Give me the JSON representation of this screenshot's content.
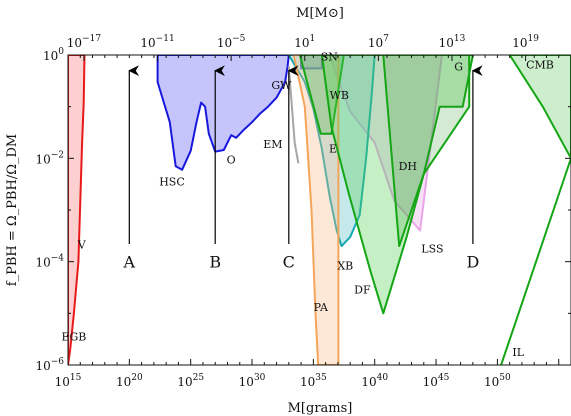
{
  "chart_data": {
    "type": "area",
    "xscale": "log",
    "yscale": "log",
    "xlim": [
      1000000000000000.0,
      1e+56
    ],
    "ylim": [
      1e-06,
      1
    ],
    "xlabel": "M[grams]",
    "ylabel": "f_PBH = Ω_PBH/Ω_DM",
    "top_axis_label": "M[M⊙]",
    "x_ticks": [
      {
        "base": "10",
        "exp": "15",
        "value": 1000000000000000.0
      },
      {
        "base": "10",
        "exp": "20",
        "value": 1e+20
      },
      {
        "base": "10",
        "exp": "25",
        "value": 1e+25
      },
      {
        "base": "10",
        "exp": "30",
        "value": 1e+30
      },
      {
        "base": "10",
        "exp": "35",
        "value": 1e+35
      },
      {
        "base": "10",
        "exp": "40",
        "value": 1e+40
      },
      {
        "base": "10",
        "exp": "45",
        "value": 1e+45
      },
      {
        "base": "10",
        "exp": "50",
        "value": 1e+50
      }
    ],
    "top_ticks": [
      {
        "base": "10",
        "exp": "−17",
        "value": 1e-17
      },
      {
        "base": "10",
        "exp": "−11",
        "value": 1e-11
      },
      {
        "base": "10",
        "exp": "−5",
        "value": 1e-05
      },
      {
        "base": "10",
        "exp": "1",
        "value": 10
      },
      {
        "base": "10",
        "exp": "7",
        "value": 10000000.0
      },
      {
        "base": "10",
        "exp": "13",
        "value": 10000000000000.0
      },
      {
        "base": "10",
        "exp": "19",
        "value": 1e+19
      }
    ],
    "y_ticks": [
      {
        "label": "10",
        "exp": "0",
        "value": 1
      },
      {
        "label": "10",
        "exp": "−2",
        "value": 0.01
      },
      {
        "label": "10",
        "exp": "−4",
        "value": 0.0001
      },
      {
        "label": "10",
        "exp": "−6",
        "value": 1e-06
      }
    ],
    "constraints": [
      {
        "name": "EGB",
        "color": "#e8191a",
        "fill": "rgba(250,120,120,0.35)",
        "points": [
          [
            1000000000000000.0,
            1e-06
          ],
          [
            1000000000000000.0,
            1
          ],
          [
            2.2e+16,
            1
          ],
          [
            1.9e+16,
            0.12
          ],
          [
            1.4e+16,
            0.02
          ],
          [
            7000000000000000.0,
            0.0001
          ],
          [
            3000000000000000.0,
            1e-05
          ],
          [
            1500000000000000.0,
            2e-06
          ]
        ]
      },
      {
        "name": "HSC",
        "color": "#1818dd",
        "fill": "rgba(110,110,245,0.4)",
        "points": [
          [
            2e+22,
            1
          ],
          [
            2e+22,
            0.3
          ],
          [
            2e+23,
            0.05
          ],
          [
            6e+23,
            0.007
          ],
          [
            2e+24,
            0.006
          ],
          [
            1e+25,
            0.014
          ],
          [
            3e+25,
            0.05
          ],
          [
            7e+25,
            0.12
          ],
          [
            1.5e+26,
            0.1
          ],
          [
            3e+26,
            0.03
          ],
          [
            1e+27,
            0.0135
          ],
          [
            5e+27,
            0.0145
          ],
          [
            2e+28,
            0.028
          ],
          [
            5e+28,
            0.025
          ],
          [
            2e+29,
            0.035
          ],
          [
            1e+30,
            0.05
          ],
          [
            5e+30,
            0.075
          ],
          [
            2e+31,
            0.1
          ],
          [
            1e+32,
            0.15
          ],
          [
            5e+32,
            0.3
          ],
          [
            8e+32,
            0.6
          ],
          [
            1e+33,
            1
          ]
        ]
      },
      {
        "name": "SN",
        "color": "#1818c8",
        "fill": "rgba(110,110,245,0.4)",
        "points": [
          [
            1e+34,
            1
          ],
          [
            1e+34,
            0.55
          ],
          [
            5e+35,
            0.55
          ],
          [
            5e+35,
            1
          ]
        ]
      },
      {
        "name": "WB",
        "color": "#e8a5e8",
        "fill": "rgba(230,170,230,0.35)",
        "points": [
          [
            2e+36,
            1
          ],
          [
            3e+37,
            0.17
          ],
          [
            1e+38,
            0.08
          ],
          [
            1e+40,
            0.02
          ],
          [
            4e+41,
            0.0015
          ],
          [
            5e+43,
            0.0004
          ],
          [
            3e+45,
            1
          ]
        ]
      },
      {
        "name": "XB",
        "color": "#13a7b0",
        "fill": "rgba(110,200,205,0.4)",
        "points": [
          [
            1e+33,
            1
          ],
          [
            2e+34,
            0.3
          ],
          [
            1e+35,
            0.09
          ],
          [
            5e+35,
            0.015
          ],
          [
            2e+36,
            0.002
          ],
          [
            8e+36,
            0.0004
          ],
          [
            2e+37,
            0.0002
          ],
          [
            1e+38,
            0.0003
          ],
          [
            6e+38,
            0.0008
          ],
          [
            2e+39,
            0.01
          ],
          [
            6e+39,
            0.2
          ],
          [
            1e+40,
            1
          ]
        ]
      },
      {
        "name": "PA",
        "color": "#f5a55a",
        "fill": "rgba(250,190,140,0.35)",
        "points": [
          [
            2.5e+33,
            1
          ],
          [
            2e+34,
            0.1
          ],
          [
            7e+34,
            0.001
          ],
          [
            1.5e+35,
            1e-05
          ],
          [
            2.5e+35,
            1e-06
          ],
          [
            1.1e+37,
            1e-06
          ],
          [
            1.1e+37,
            1
          ]
        ]
      },
      {
        "name": "E",
        "color": "#14a614",
        "fill": "rgba(90,190,90,0.35)",
        "points": [
          [
            8e+33,
            1
          ],
          [
            4e+35,
            0.03
          ],
          [
            3e+36,
            0.03
          ],
          [
            3e+37,
            1
          ]
        ]
      },
      {
        "name": "DF",
        "color": "#14a614",
        "fill": "rgba(90,210,90,0.35)",
        "points": [
          [
            5e+35,
            1
          ],
          [
            3e+36,
            0.04
          ],
          [
            8e+37,
            0.002
          ],
          [
            5e+39,
            6e-05
          ],
          [
            5e+40,
            1e-05
          ],
          [
            4e+42,
            0.0003
          ],
          [
            1e+44,
            0.005
          ],
          [
            2e+45,
            0.1
          ],
          [
            1.5e+47,
            0.1
          ],
          [
            1e+48,
            1
          ]
        ]
      },
      {
        "name": "G",
        "color": "#14a614",
        "fill": "rgba(40,150,40,0.2)",
        "points": [
          [
            5e+40,
            1
          ],
          [
            5e+47,
            1
          ],
          [
            5e+47,
            0.1
          ],
          [
            1e+44,
            0.005
          ],
          [
            1e+42,
            0.0002
          ]
        ]
      },
      {
        "name": "CMB",
        "color": "#14a614",
        "fill": "rgba(90,200,90,0.3)",
        "points": [
          [
            1e+51,
            1
          ],
          [
            5e+53,
            0.1
          ],
          [
            1e+56,
            0.01
          ],
          [
            1e+56,
            1
          ]
        ]
      },
      {
        "name": "IL",
        "color": "#14a614",
        "fill": "none",
        "points": [
          [
            2e+50,
            1e-06
          ],
          [
            1e+56,
            0.01
          ]
        ]
      },
      {
        "name": "GW",
        "color": "#a6a6a6",
        "fill": "none",
        "points": [
          [
            1e+33,
            0.6
          ],
          [
            3e+33,
            0.02
          ],
          [
            6e+33,
            0.008
          ]
        ]
      }
    ],
    "region_labels": [
      {
        "text": "EGB",
        "x": 3000000000000000.0,
        "y": 3e-06
      },
      {
        "text": "V",
        "x": 1.3e+16,
        "y": 0.00018
      },
      {
        "text": "HSC",
        "x": 3e+23,
        "y": 0.003
      },
      {
        "text": "O",
        "x": 2e+28,
        "y": 0.008
      },
      {
        "text": "EM",
        "x": 5e+31,
        "y": 0.016
      },
      {
        "text": "GW",
        "x": 2.5e+32,
        "y": 0.22
      },
      {
        "text": "SN",
        "x": 2e+36,
        "y": 0.78
      },
      {
        "text": "WB",
        "x": 1.3e+37,
        "y": 0.14
      },
      {
        "text": "E",
        "x": 4e+36,
        "y": 0.013
      },
      {
        "text": "DH",
        "x": 5e+42,
        "y": 0.006
      },
      {
        "text": "XB",
        "x": 4e+37,
        "y": 7e-05
      },
      {
        "text": "LSS",
        "x": 5e+44,
        "y": 0.00015
      },
      {
        "text": "DF",
        "x": 1e+39,
        "y": 2.4e-05
      },
      {
        "text": "PA",
        "x": 4e+35,
        "y": 1.1e-05
      },
      {
        "text": "G",
        "x": 7e+46,
        "y": 0.5
      },
      {
        "text": "CMB",
        "x": 3e+53,
        "y": 0.55
      },
      {
        "text": "IL",
        "x": 5e+51,
        "y": 1.5e-06
      }
    ],
    "window_markers": [
      {
        "label": "A",
        "x": 1e+20
      },
      {
        "label": "B",
        "x": 1e+27
      },
      {
        "label": "C",
        "x": 1e+33
      },
      {
        "label": "D",
        "x": 1e+48
      }
    ],
    "grid": false,
    "legend": "none"
  }
}
